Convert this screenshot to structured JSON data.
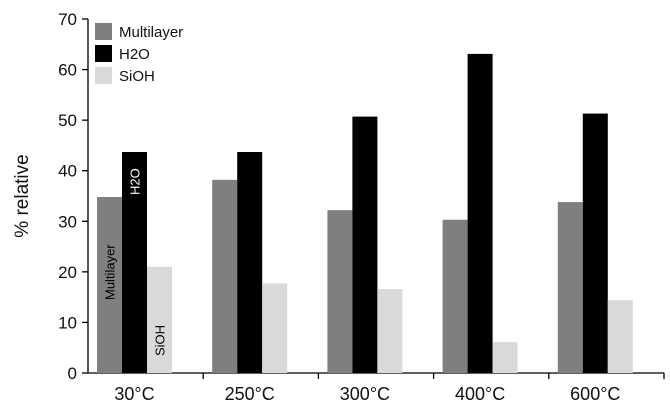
{
  "chart_data": {
    "type": "bar",
    "title": "",
    "xlabel": "",
    "ylabel": "% relative",
    "ylim": [
      0,
      70
    ],
    "yticks": [
      "0",
      "10",
      "20",
      "30",
      "40",
      "50",
      "60",
      "70"
    ],
    "grid": false,
    "legend_position": "top-left",
    "categories": [
      "30°C",
      "250°C",
      "300°C",
      "400°C",
      "600°C"
    ],
    "series": [
      {
        "name": "Multilayer",
        "color": "#7f7f7f",
        "values": [
          34.8,
          38.2,
          32.2,
          30.3,
          33.8
        ]
      },
      {
        "name": "H2O",
        "color": "#000000",
        "values": [
          43.7,
          43.7,
          50.7,
          63.1,
          51.3
        ]
      },
      {
        "name": "SiOH",
        "color": "#d9d9d9",
        "values": [
          21.0,
          17.7,
          16.6,
          6.1,
          14.4
        ]
      }
    ],
    "bar_annotations": [
      "Multilayer",
      "H2O",
      "SiOH"
    ]
  }
}
